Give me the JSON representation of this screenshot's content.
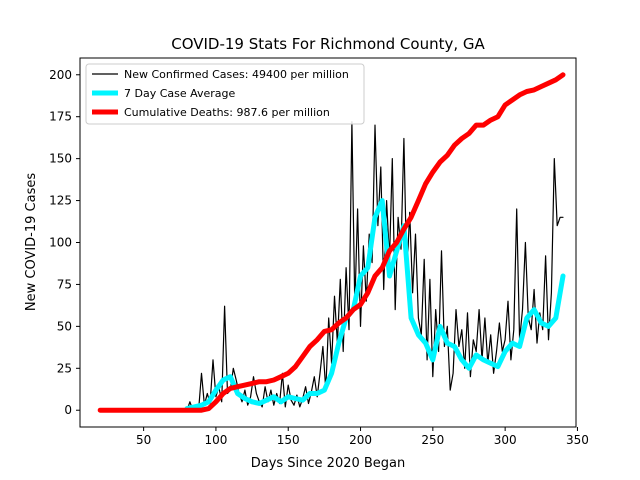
{
  "chart_data": {
    "type": "line",
    "title": "COVID-19 Stats For Richmond County, GA",
    "xlabel": "Days Since 2020 Began",
    "ylabel": "New COVID-19 Cases",
    "xlim": [
      6,
      349
    ],
    "ylim": [
      -10,
      210
    ],
    "xticks": [
      50,
      100,
      150,
      200,
      250,
      300,
      350
    ],
    "yticks": [
      0,
      25,
      50,
      75,
      100,
      125,
      150,
      175,
      200
    ],
    "grid": false,
    "legend_position": "top-left",
    "series": [
      {
        "name": "New Confirmed Cases: 49400 per million",
        "color": "#000000",
        "style": "thin",
        "x": [
          20,
          40,
          60,
          80,
          82,
          84,
          86,
          88,
          90,
          92,
          94,
          96,
          98,
          100,
          102,
          104,
          106,
          108,
          110,
          112,
          114,
          116,
          118,
          120,
          122,
          124,
          126,
          128,
          130,
          132,
          134,
          136,
          138,
          140,
          142,
          144,
          146,
          148,
          150,
          152,
          154,
          156,
          158,
          160,
          162,
          164,
          166,
          168,
          170,
          172,
          174,
          176,
          178,
          180,
          182,
          184,
          186,
          188,
          190,
          192,
          194,
          196,
          198,
          200,
          202,
          204,
          206,
          208,
          210,
          212,
          214,
          216,
          218,
          220,
          222,
          224,
          226,
          228,
          230,
          232,
          234,
          236,
          238,
          240,
          242,
          244,
          246,
          248,
          250,
          252,
          254,
          256,
          258,
          260,
          262,
          264,
          266,
          268,
          270,
          272,
          274,
          276,
          278,
          280,
          282,
          284,
          286,
          288,
          290,
          292,
          294,
          296,
          298,
          300,
          302,
          304,
          306,
          308,
          310,
          312,
          314,
          316,
          318,
          320,
          322,
          324,
          326,
          328,
          330,
          332,
          334,
          336,
          338,
          340
        ],
        "values": [
          0,
          0,
          0,
          0,
          5,
          0,
          2,
          0,
          22,
          3,
          10,
          4,
          30,
          8,
          14,
          5,
          62,
          10,
          12,
          25,
          18,
          10,
          5,
          12,
          3,
          8,
          20,
          10,
          5,
          2,
          14,
          5,
          12,
          3,
          10,
          4,
          22,
          2,
          15,
          6,
          3,
          9,
          2,
          7,
          14,
          4,
          11,
          20,
          8,
          22,
          38,
          12,
          55,
          28,
          68,
          40,
          78,
          35,
          85,
          48,
          172,
          62,
          120,
          50,
          98,
          65,
          105,
          88,
          170,
          110,
          145,
          72,
          125,
          90,
          150,
          60,
          115,
          96,
          162,
          80,
          118,
          70,
          105,
          55,
          45,
          90,
          30,
          78,
          20,
          60,
          35,
          95,
          38,
          50,
          12,
          22,
          60,
          38,
          48,
          25,
          58,
          20,
          42,
          35,
          60,
          30,
          55,
          28,
          45,
          22,
          35,
          52,
          35,
          42,
          65,
          30,
          48,
          120,
          42,
          60,
          100,
          55,
          48,
          72,
          40,
          58,
          48,
          92,
          42,
          70,
          150,
          110,
          115,
          115
        ]
      },
      {
        "name": "7 Day Case Average",
        "color": "#00f5ff",
        "style": "thick",
        "x": [
          80,
          85,
          90,
          95,
          100,
          105,
          110,
          115,
          120,
          125,
          130,
          135,
          140,
          145,
          150,
          155,
          160,
          165,
          170,
          175,
          180,
          185,
          190,
          195,
          200,
          205,
          210,
          215,
          220,
          225,
          230,
          235,
          240,
          245,
          250,
          255,
          260,
          265,
          270,
          275,
          280,
          285,
          290,
          295,
          300,
          305,
          310,
          315,
          320,
          325,
          330,
          335,
          340
        ],
        "values": [
          1,
          2,
          3,
          5,
          12,
          18,
          20,
          10,
          7,
          5,
          4,
          6,
          8,
          5,
          8,
          7,
          6,
          10,
          10,
          12,
          22,
          40,
          55,
          60,
          80,
          85,
          115,
          125,
          80,
          95,
          110,
          55,
          45,
          40,
          30,
          50,
          40,
          38,
          30,
          25,
          33,
          30,
          28,
          26,
          35,
          40,
          38,
          55,
          60,
          52,
          50,
          55,
          80
        ]
      },
      {
        "name": "Cumulative Deaths: 987.6 per million",
        "color": "#ff0000",
        "style": "thick",
        "x": [
          20,
          40,
          60,
          80,
          90,
          95,
          100,
          105,
          110,
          115,
          120,
          125,
          130,
          135,
          140,
          145,
          150,
          155,
          160,
          165,
          170,
          175,
          180,
          185,
          190,
          195,
          200,
          205,
          210,
          215,
          220,
          225,
          230,
          235,
          240,
          245,
          250,
          255,
          260,
          265,
          270,
          275,
          280,
          285,
          290,
          295,
          300,
          305,
          310,
          315,
          320,
          325,
          330,
          335,
          340
        ],
        "values": [
          0,
          0,
          0,
          0,
          0,
          1,
          5,
          10,
          13,
          14,
          15,
          16,
          17,
          17,
          18,
          20,
          22,
          26,
          32,
          38,
          42,
          47,
          48,
          52,
          55,
          60,
          63,
          70,
          80,
          85,
          95,
          100,
          108,
          115,
          125,
          135,
          142,
          148,
          152,
          158,
          162,
          165,
          170,
          170,
          173,
          175,
          182,
          185,
          188,
          190,
          191,
          193,
          195,
          197,
          200
        ]
      }
    ]
  }
}
